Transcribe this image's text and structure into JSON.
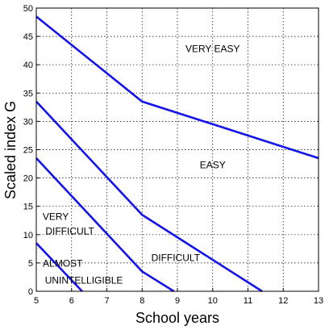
{
  "chart_data": {
    "type": "line",
    "xlabel": "School years",
    "ylabel": "Scaled index G",
    "xlim": [
      5,
      13
    ],
    "ylim": [
      0,
      50
    ],
    "x_ticks": [
      5,
      6,
      7,
      8,
      9,
      10,
      11,
      12,
      13
    ],
    "y_ticks": [
      0,
      5,
      10,
      15,
      20,
      25,
      30,
      35,
      40,
      45,
      50
    ],
    "grid": true,
    "line_color": "#1414e6",
    "series": [
      {
        "x": [
          5,
          8,
          13
        ],
        "y": [
          48.5,
          33.5,
          23.5
        ]
      },
      {
        "x": [
          5,
          8,
          11.4
        ],
        "y": [
          33.5,
          13.5,
          0
        ]
      },
      {
        "x": [
          5,
          8,
          8.9
        ],
        "y": [
          23.5,
          3.5,
          0
        ]
      },
      {
        "x": [
          5,
          6.3
        ],
        "y": [
          8.5,
          0
        ]
      }
    ],
    "region_labels": [
      {
        "text": "VERY EASY",
        "x": 10.0,
        "y": 42.8
      },
      {
        "text": "EASY",
        "x": 10.0,
        "y": 22.3
      },
      {
        "text": "VERY",
        "x": 5.55,
        "y": 13.2
      },
      {
        "text": "DIFFICULT",
        "x": 5.95,
        "y": 10.6
      },
      {
        "text": "DIFFICULT",
        "x": 8.95,
        "y": 5.9
      },
      {
        "text": "ALMOST",
        "x": 5.75,
        "y": 4.9
      },
      {
        "text": "UNINTELLIGIBLE",
        "x": 6.35,
        "y": 1.9
      }
    ]
  }
}
